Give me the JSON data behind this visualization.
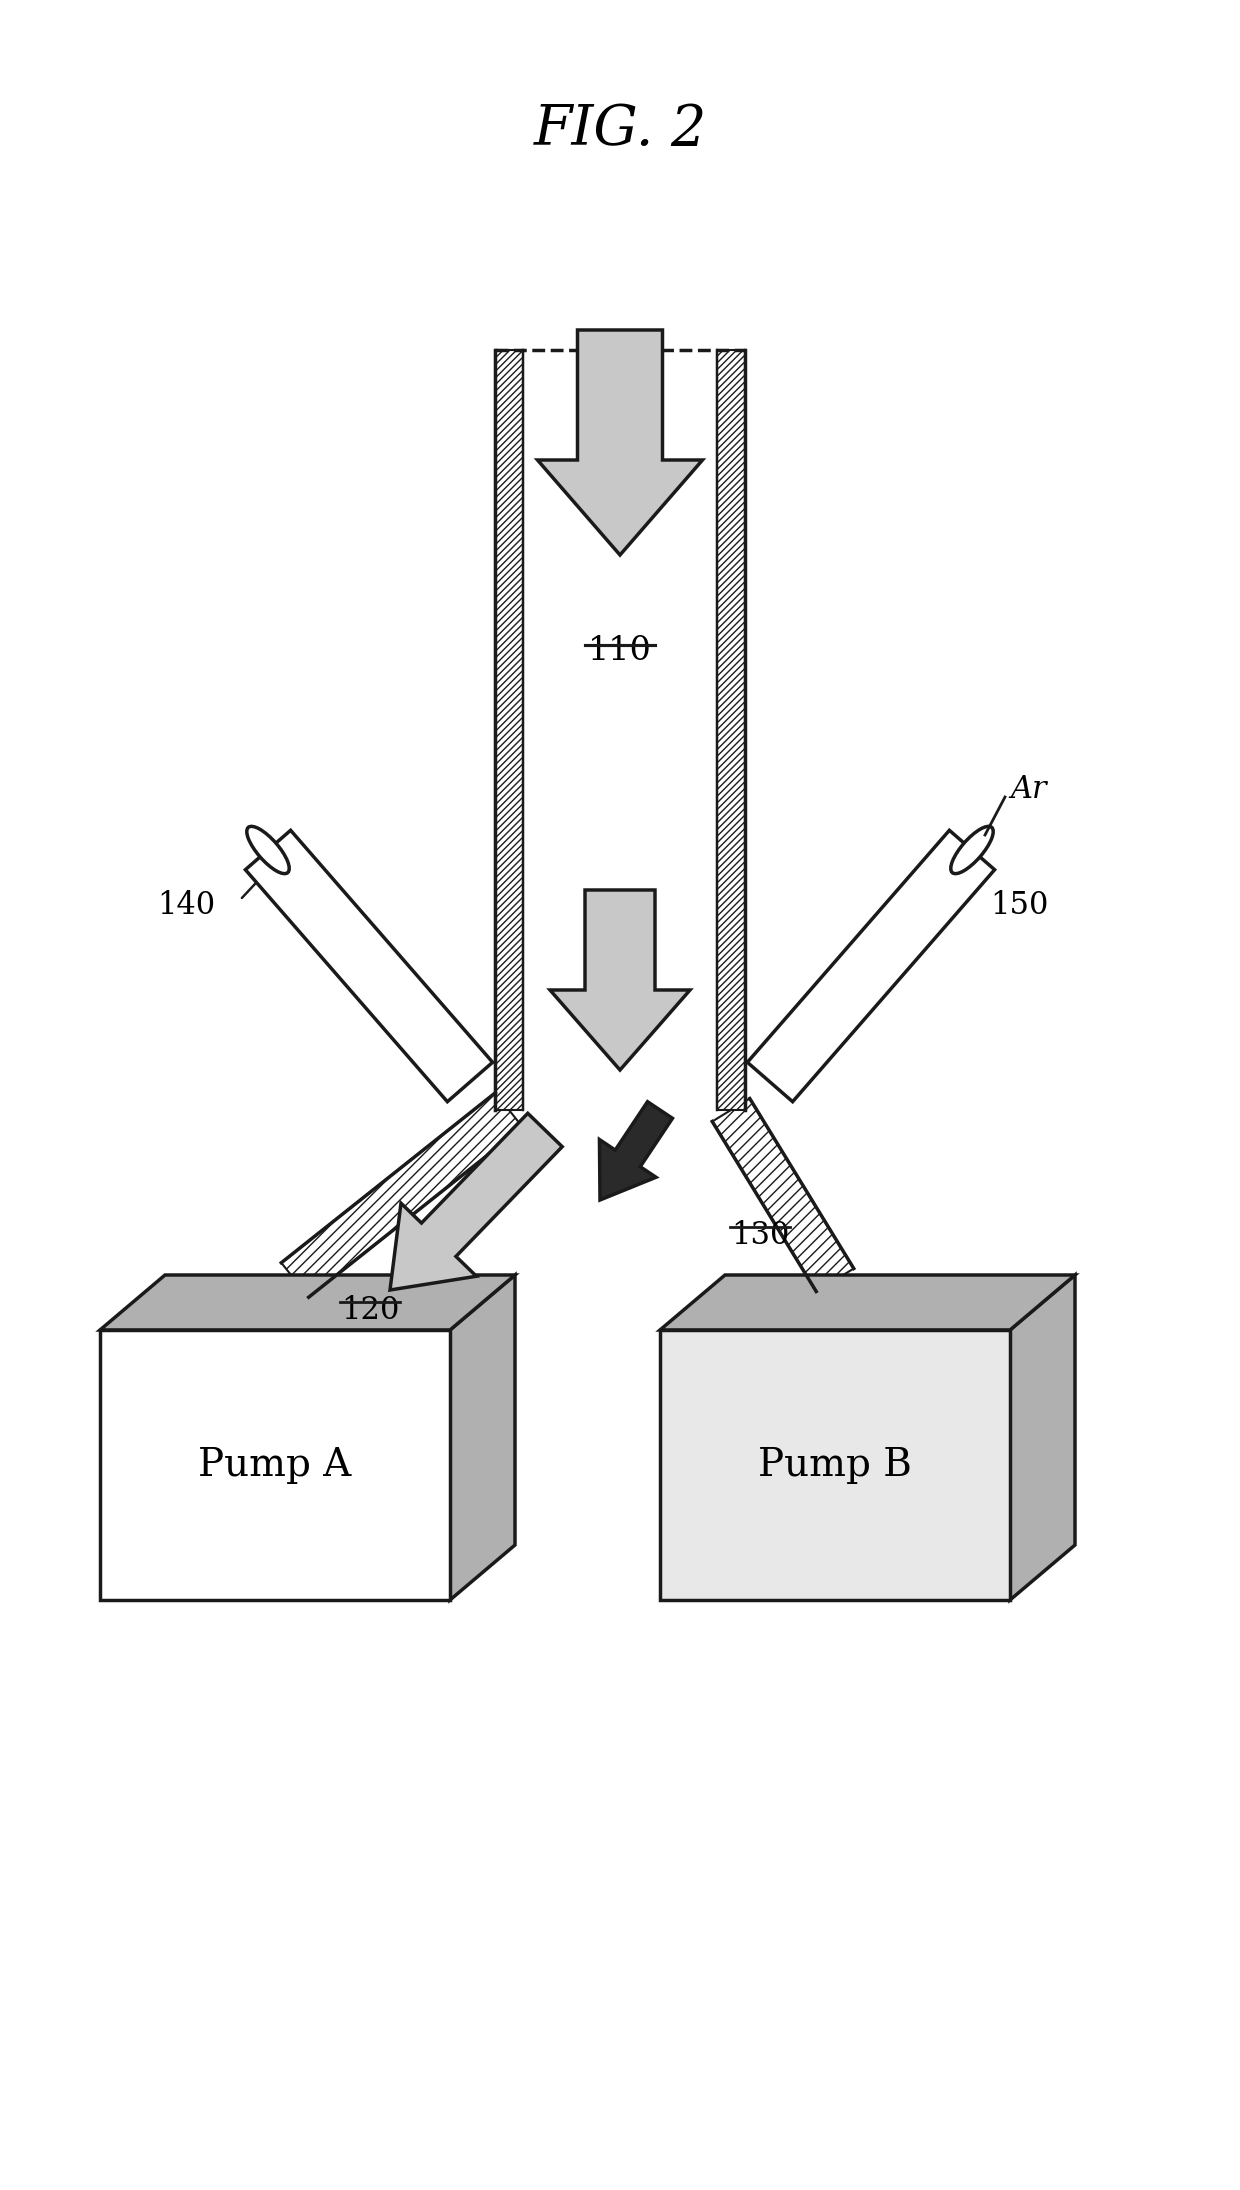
{
  "title": "FIG. 2",
  "title_fontsize": 40,
  "bg_color": "#ffffff",
  "line_color": "#1a1a1a",
  "line_width": 2.5,
  "stipple_color": "#c8c8c8",
  "dark_fill": "#2a2a2a",
  "hatch_color": "#333333",
  "box_gray_light": "#e8e8e8",
  "box_gray_dark": "#b0b0b0",
  "label_110": "110",
  "label_120": "120",
  "label_130": "130",
  "label_140": "140",
  "label_150": "150",
  "label_Ar": "Ar",
  "label_PumpA": "Pump A",
  "label_PumpB": "Pump B",
  "fig_w": 1240,
  "fig_h": 2190
}
